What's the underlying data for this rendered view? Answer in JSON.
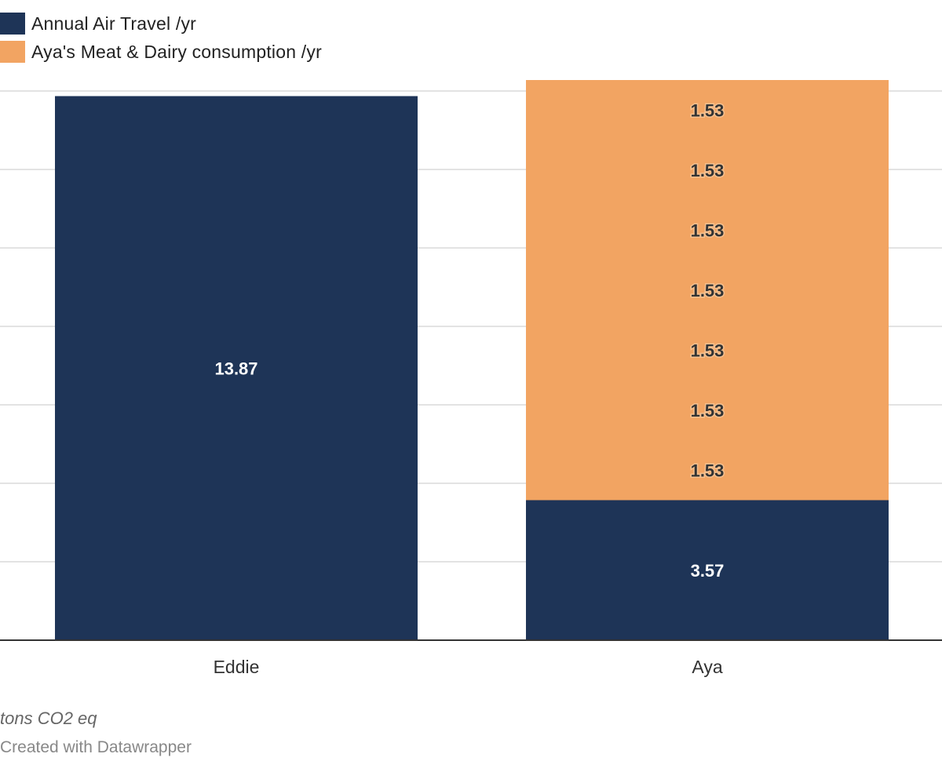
{
  "legend": {
    "items": [
      {
        "label": "Annual Air Travel /yr",
        "color": "#1e3457"
      },
      {
        "label": "Aya's Meat & Dairy consumption /yr",
        "color": "#f2a462"
      }
    ]
  },
  "chart_data": {
    "type": "bar",
    "stacked": true,
    "categories": [
      "Eddie",
      "Aya"
    ],
    "series": [
      {
        "name": "Annual Air Travel /yr",
        "color": "#1e3457",
        "values": [
          13.87,
          3.57
        ]
      },
      {
        "name": "Aya's Meat & Dairy consumption /yr",
        "color": "#f2a462",
        "segments": [
          [],
          [
            1.53,
            1.53,
            1.53,
            1.53,
            1.53,
            1.53,
            1.53
          ]
        ]
      }
    ],
    "ylim": [
      0,
      14
    ],
    "grid": true,
    "legend_position": "top-left"
  },
  "footer": {
    "unit_note": "tons CO2 eq",
    "credit": "Created with Datawrapper"
  }
}
